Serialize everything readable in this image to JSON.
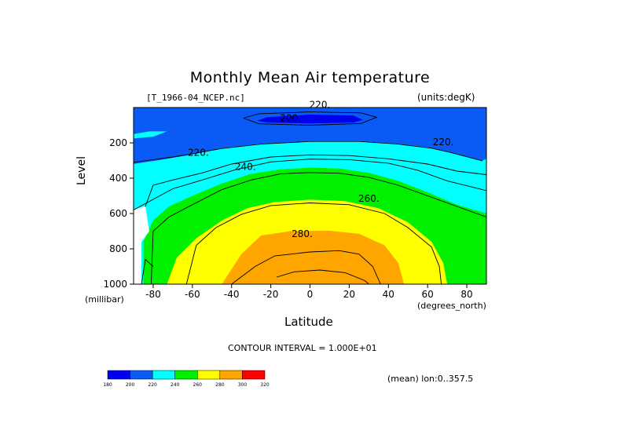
{
  "chart_data": {
    "type": "contour",
    "title": "Monthly Mean Air temperature",
    "dataset": "[T_1966-04_NCEP.nc]",
    "units_label": "(units:degK)",
    "xlabel": "Latitude",
    "x_units": "(degrees_north)",
    "ylabel": "Level",
    "y_units": "(millibar)",
    "xlim": [
      -90,
      90
    ],
    "ylim": [
      1000,
      0
    ],
    "x_ticks": [
      -80,
      -60,
      -40,
      -20,
      0,
      20,
      40,
      60,
      80
    ],
    "y_ticks": [
      200,
      400,
      600,
      800,
      1000
    ],
    "contour_interval_text": "CONTOUR INTERVAL = 1.000E+01",
    "mean_text": "(mean) lon:0..357.5",
    "contour_levels": [
      180,
      200,
      220,
      240,
      260,
      280,
      300,
      320
    ],
    "color_bar": {
      "labels": [
        "180",
        "200",
        "220",
        "240",
        "260",
        "280",
        "300",
        "320"
      ],
      "colors": [
        "#0000f0",
        "#0a5af5",
        "#00ffff",
        "#00f000",
        "#ffff00",
        "#ffa500",
        "#ff0000"
      ]
    },
    "contour_labels": [
      {
        "text": "220.",
        "lat": -57,
        "level": 255
      },
      {
        "text": "240.",
        "lat": -33,
        "level": 335
      },
      {
        "text": "220.",
        "lat": 68,
        "level": 195
      },
      {
        "text": "200.",
        "lat": -10,
        "level": 60
      },
      {
        "text": "220.",
        "lat": 5,
        "level": -15
      },
      {
        "text": "260.",
        "lat": 30,
        "level": 515
      },
      {
        "text": "280.",
        "lat": -4,
        "level": 715
      }
    ],
    "regions": [
      {
        "range": "200-220 degK",
        "color": "#0a5af5",
        "bounds": [
          [
            -90,
            0
          ],
          [
            -90,
            320
          ],
          [
            -78,
            300
          ],
          [
            -62,
            270
          ],
          [
            -45,
            230
          ],
          [
            -25,
            205
          ],
          [
            0,
            190
          ],
          [
            25,
            190
          ],
          [
            45,
            205
          ],
          [
            60,
            225
          ],
          [
            70,
            250
          ],
          [
            88,
            300
          ],
          [
            90,
            290
          ],
          [
            90,
            0
          ]
        ]
      },
      {
        "range": "220-240 degK",
        "color": "#00ffff",
        "bounds": [
          [
            -90,
            320
          ],
          [
            -90,
            575
          ],
          [
            -80,
            530
          ],
          [
            -70,
            470
          ],
          [
            -55,
            420
          ],
          [
            -38,
            360
          ],
          [
            -20,
            315
          ],
          [
            0,
            298
          ],
          [
            20,
            300
          ],
          [
            40,
            320
          ],
          [
            55,
            360
          ],
          [
            70,
            420
          ],
          [
            85,
            470
          ],
          [
            90,
            475
          ],
          [
            90,
            290
          ],
          [
            88,
            300
          ],
          [
            70,
            250
          ],
          [
            60,
            225
          ],
          [
            45,
            205
          ],
          [
            25,
            190
          ],
          [
            0,
            190
          ],
          [
            -25,
            205
          ],
          [
            -45,
            230
          ],
          [
            -62,
            270
          ],
          [
            -78,
            300
          ]
        ]
      },
      {
        "range": "240-260 degK",
        "color": "#00f000",
        "bounds": [
          [
            -85,
            1000
          ],
          [
            -85,
            760
          ],
          [
            -80,
            640
          ],
          [
            -72,
            560
          ],
          [
            -60,
            500
          ],
          [
            -45,
            430
          ],
          [
            -30,
            375
          ],
          [
            -15,
            350
          ],
          [
            0,
            340
          ],
          [
            15,
            345
          ],
          [
            30,
            370
          ],
          [
            45,
            415
          ],
          [
            60,
            480
          ],
          [
            75,
            550
          ],
          [
            90,
            600
          ],
          [
            90,
            1000
          ]
        ]
      },
      {
        "range": "260-280 degK",
        "color": "#ffff00",
        "bounds": [
          [
            -73,
            1000
          ],
          [
            -68,
            850
          ],
          [
            -58,
            740
          ],
          [
            -45,
            640
          ],
          [
            -32,
            570
          ],
          [
            -18,
            535
          ],
          [
            0,
            522
          ],
          [
            18,
            530
          ],
          [
            35,
            570
          ],
          [
            50,
            650
          ],
          [
            62,
            760
          ],
          [
            68,
            880
          ],
          [
            70,
            1000
          ]
        ]
      },
      {
        "range": "280-300 degK",
        "color": "#ffa500",
        "bounds": [
          [
            -45,
            1000
          ],
          [
            -35,
            830
          ],
          [
            -25,
            725
          ],
          [
            -10,
            700
          ],
          [
            10,
            698
          ],
          [
            25,
            715
          ],
          [
            38,
            780
          ],
          [
            45,
            880
          ],
          [
            48,
            1000
          ]
        ]
      },
      {
        "range": "180-200 degK",
        "color": "#0000f0",
        "bounds": [
          [
            -27,
            75
          ],
          [
            -22,
            55
          ],
          [
            0,
            40
          ],
          [
            22,
            45
          ],
          [
            27,
            70
          ],
          [
            22,
            85
          ],
          [
            0,
            90
          ],
          [
            -22,
            85
          ]
        ]
      }
    ],
    "white_region": {
      "bounds": [
        [
          -90,
          575
        ],
        [
          -84,
          560
        ],
        [
          -82,
          700
        ],
        [
          -86,
          760
        ],
        [
          -86,
          1000
        ],
        [
          -90,
          1000
        ]
      ]
    },
    "cyan_patch": {
      "bounds": [
        [
          -90,
          150
        ],
        [
          -82,
          135
        ],
        [
          -73,
          135
        ],
        [
          -80,
          165
        ],
        [
          -90,
          175
        ]
      ]
    },
    "contour_lines": [
      [
        [
          -90,
          310
        ],
        [
          -80,
          295
        ],
        [
          -70,
          280
        ],
        [
          -60,
          262
        ],
        [
          -45,
          232
        ],
        [
          -25,
          207
        ],
        [
          0,
          192
        ],
        [
          25,
          192
        ],
        [
          45,
          207
        ],
        [
          62,
          230
        ],
        [
          72,
          255
        ],
        [
          88,
          302
        ]
      ],
      [
        [
          -90,
          580
        ],
        [
          -80,
          520
        ],
        [
          -70,
          460
        ],
        [
          -55,
          410
        ],
        [
          -38,
          352
        ],
        [
          -20,
          308
        ],
        [
          0,
          292
        ],
        [
          20,
          295
        ],
        [
          40,
          315
        ],
        [
          55,
          355
        ],
        [
          70,
          415
        ],
        [
          90,
          470
        ]
      ],
      [
        [
          -84,
          560
        ],
        [
          -80,
          440
        ],
        [
          -70,
          410
        ],
        [
          -55,
          370
        ],
        [
          -40,
          320
        ],
        [
          -20,
          280
        ],
        [
          0,
          268
        ],
        [
          20,
          272
        ],
        [
          40,
          290
        ],
        [
          60,
          320
        ],
        [
          75,
          360
        ],
        [
          90,
          380
        ]
      ],
      [
        [
          -81,
          1000
        ],
        [
          -80,
          700
        ],
        [
          -72,
          620
        ],
        [
          -60,
          550
        ],
        [
          -45,
          465
        ],
        [
          -30,
          410
        ],
        [
          -15,
          375
        ],
        [
          0,
          368
        ],
        [
          15,
          372
        ],
        [
          30,
          395
        ],
        [
          45,
          440
        ],
        [
          60,
          500
        ],
        [
          75,
          560
        ],
        [
          90,
          620
        ]
      ],
      [
        [
          -63,
          1000
        ],
        [
          -58,
          780
        ],
        [
          -48,
          680
        ],
        [
          -35,
          605
        ],
        [
          -20,
          555
        ],
        [
          0,
          540
        ],
        [
          20,
          550
        ],
        [
          38,
          600
        ],
        [
          50,
          680
        ],
        [
          62,
          790
        ],
        [
          66,
          900
        ],
        [
          67,
          1000
        ]
      ],
      [
        [
          -40,
          1000
        ],
        [
          -28,
          900
        ],
        [
          -18,
          840
        ],
        [
          0,
          818
        ],
        [
          15,
          810
        ],
        [
          25,
          830
        ],
        [
          32,
          900
        ],
        [
          36,
          1000
        ]
      ],
      [
        [
          -34,
          60
        ],
        [
          -26,
          35
        ],
        [
          0,
          25
        ],
        [
          26,
          30
        ],
        [
          34,
          55
        ],
        [
          26,
          90
        ],
        [
          0,
          100
        ],
        [
          -26,
          92
        ],
        [
          -34,
          60
        ]
      ],
      [
        [
          -17,
          960
        ],
        [
          -8,
          930
        ],
        [
          5,
          920
        ],
        [
          18,
          935
        ],
        [
          28,
          980
        ],
        [
          30,
          1000
        ]
      ],
      [
        [
          -80,
          900
        ],
        [
          -84,
          860
        ],
        [
          -86,
          1000
        ]
      ]
    ]
  }
}
